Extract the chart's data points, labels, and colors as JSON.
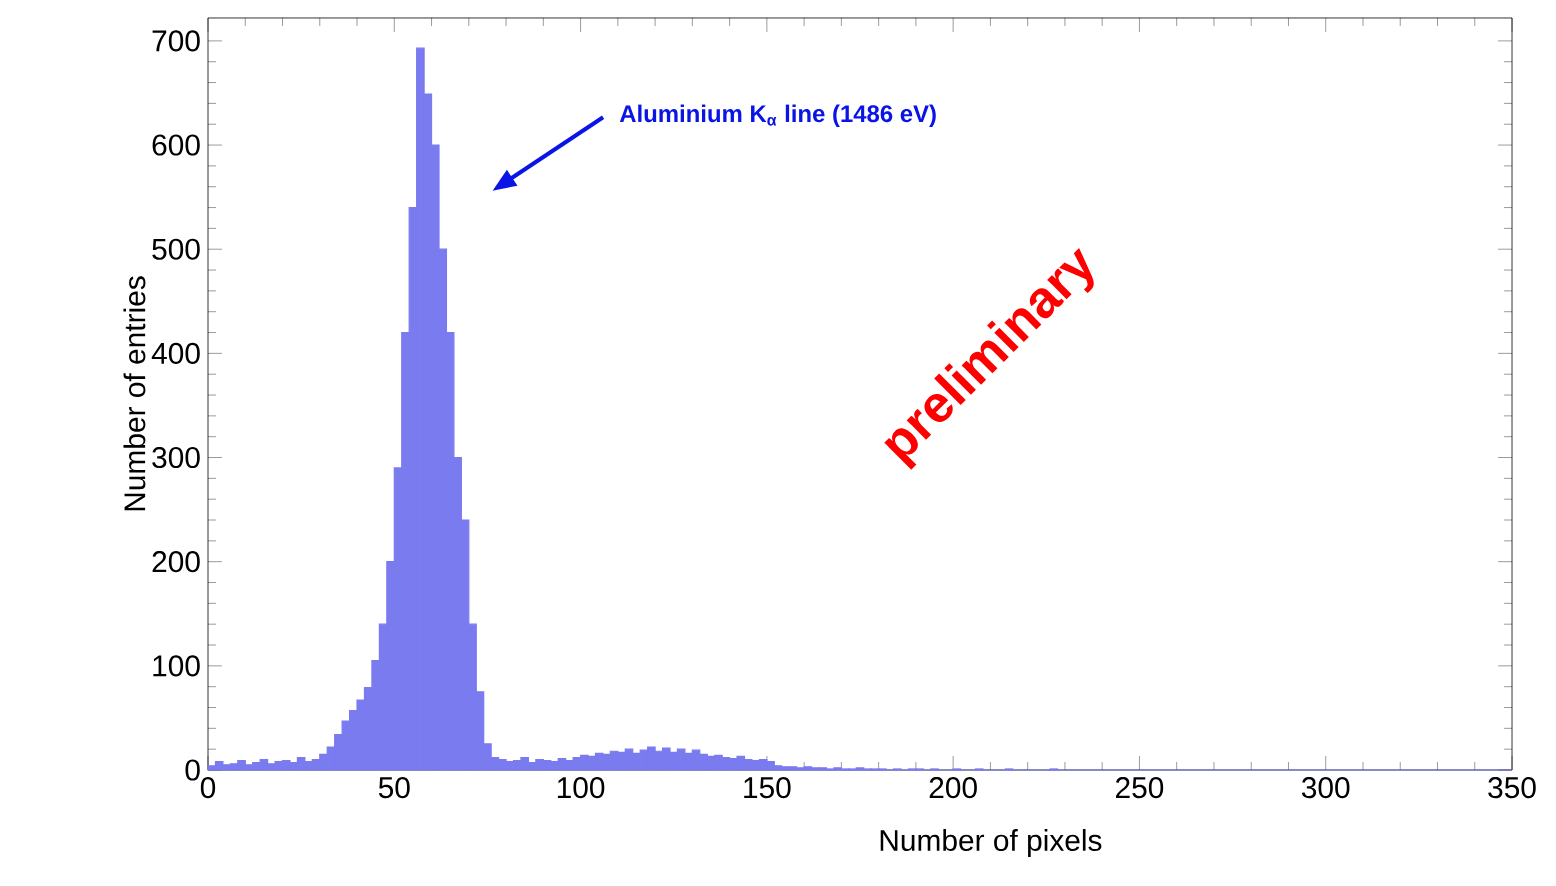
{
  "chart_data": {
    "type": "histogram",
    "xlabel": "Number of pixels",
    "ylabel": "Number of entries",
    "bins": [
      0,
      2,
      4,
      6,
      8,
      10,
      12,
      14,
      16,
      18,
      20,
      22,
      24,
      26,
      28,
      30,
      32,
      34,
      36,
      38,
      40,
      42,
      44,
      46,
      48,
      50,
      52,
      54,
      56,
      58,
      60,
      62,
      64,
      66,
      68,
      70,
      72,
      74,
      76,
      78,
      80,
      82,
      84,
      86,
      88,
      90,
      92,
      94,
      96,
      98,
      100,
      102,
      104,
      106,
      108,
      110,
      112,
      114,
      116,
      118,
      120,
      122,
      124,
      126,
      128,
      130,
      132,
      134,
      136,
      138,
      140,
      142,
      144,
      146,
      148,
      150,
      152,
      154,
      156,
      158,
      160,
      162,
      164,
      166,
      168,
      170,
      172,
      174,
      176,
      178,
      180,
      182,
      184,
      186,
      188,
      190,
      192,
      194,
      196,
      198,
      200,
      202,
      204,
      206,
      208,
      210,
      212,
      214,
      216,
      218,
      220,
      222,
      224,
      226,
      228,
      230,
      232,
      234,
      236,
      238,
      240,
      242,
      244,
      246,
      248,
      250,
      252,
      254,
      256,
      258,
      260,
      262,
      264,
      266,
      268,
      270,
      272,
      274,
      276,
      278,
      280,
      282,
      284,
      286,
      288,
      290,
      292,
      294,
      296,
      298,
      300,
      302,
      304,
      306,
      308,
      310,
      312,
      314,
      316,
      318,
      320,
      322,
      324,
      326,
      328,
      330,
      332,
      334,
      336,
      338,
      340,
      342,
      344,
      346,
      348,
      350
    ],
    "values": [
      4,
      8,
      5,
      6,
      9,
      5,
      7,
      10,
      6,
      8,
      9,
      7,
      12,
      8,
      10,
      15,
      22,
      34,
      47,
      57,
      67,
      79,
      105,
      140,
      200,
      290,
      420,
      540,
      693,
      649,
      600,
      500,
      420,
      300,
      240,
      140,
      75,
      25,
      12,
      10,
      8,
      9,
      12,
      7,
      10,
      9,
      8,
      11,
      9,
      12,
      14,
      13,
      16,
      15,
      18,
      17,
      20,
      16,
      19,
      22,
      18,
      21,
      17,
      20,
      16,
      19,
      15,
      13,
      14,
      12,
      11,
      13,
      10,
      9,
      10,
      8,
      4,
      3,
      3,
      2,
      3,
      2,
      2,
      1,
      2,
      1,
      1,
      2,
      1,
      1,
      1,
      0,
      1,
      0,
      1,
      1,
      0,
      1,
      0,
      0,
      1,
      0,
      0,
      1,
      0,
      0,
      0,
      1,
      0,
      0,
      0,
      0,
      0,
      1,
      0,
      0,
      0,
      0,
      0,
      0,
      0,
      0,
      0,
      0,
      0,
      0,
      0,
      0,
      0,
      0,
      0,
      0,
      0,
      0,
      0,
      0,
      0,
      0,
      0,
      0,
      0,
      0,
      0,
      0,
      0,
      0,
      0,
      0,
      0,
      0,
      0,
      0,
      0,
      0,
      0,
      0,
      0,
      0,
      0,
      0,
      0,
      0,
      0,
      0,
      0,
      0,
      0,
      0,
      0,
      0,
      0,
      0,
      0,
      0,
      0
    ],
    "color": "#7b7bf0",
    "xlim": [
      0,
      350
    ],
    "ylim": [
      0,
      722
    ],
    "xticks": [
      0,
      50,
      100,
      150,
      200,
      250,
      300,
      350
    ],
    "yticks": [
      0,
      100,
      200,
      300,
      400,
      500,
      600,
      700
    ],
    "grid": false,
    "annotations": [
      "Aluminium K$_{α}$ line (1486 eV)",
      "preliminary"
    ]
  }
}
